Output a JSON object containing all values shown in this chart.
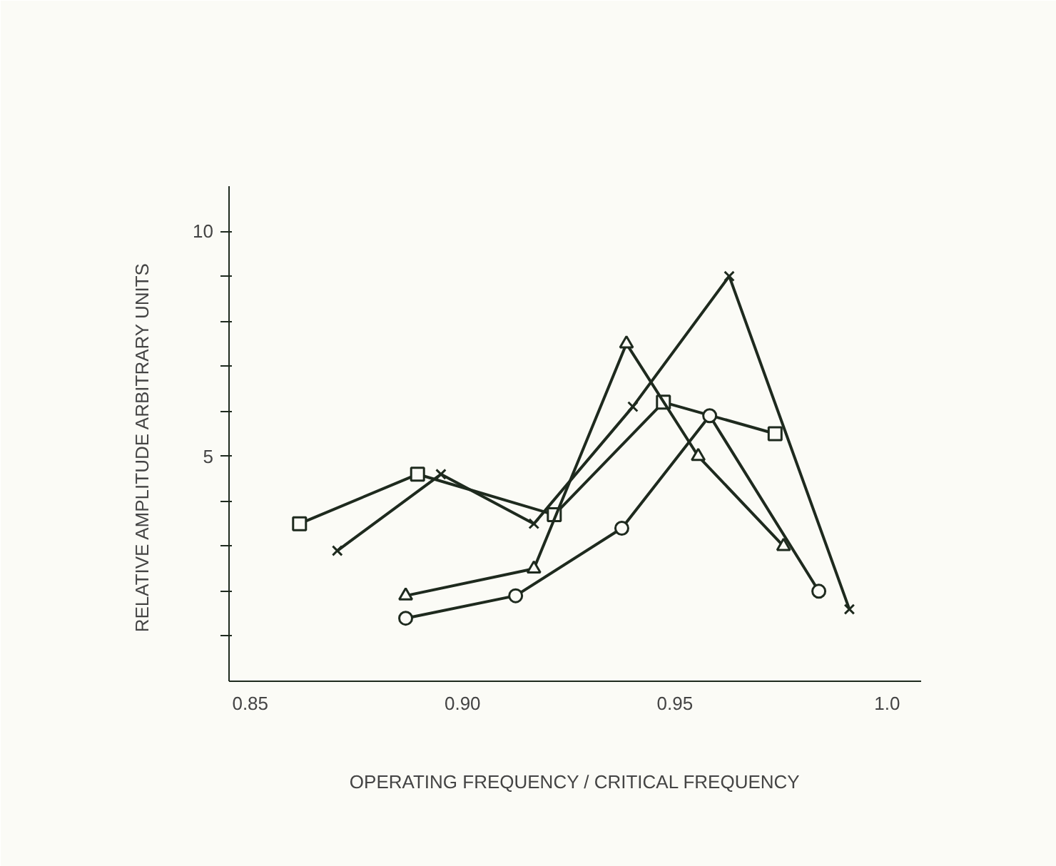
{
  "chart_data": {
    "type": "line",
    "xlabel": "OPERATING FREQUENCY / CRITICAL FREQUENCY",
    "ylabel": "RELATIVE AMPLITUDE      ARBITRARY UNITS",
    "xlim": [
      0.845,
      1.008
    ],
    "ylim": [
      0,
      11
    ],
    "xticks": [
      0.85,
      {
        "value": 0.9,
        "label": "0.90"
      },
      0.95,
      {
        "value": 1.0,
        "label": "1.0"
      }
    ],
    "yticks": [
      {
        "value": 1,
        "label": null
      },
      {
        "value": 2,
        "label": null
      },
      {
        "value": 3,
        "label": null
      },
      {
        "value": 4,
        "label": null
      },
      5,
      {
        "value": 6,
        "label": null
      },
      {
        "value": 7,
        "label": null
      },
      {
        "value": 8,
        "label": null
      },
      {
        "value": 9,
        "label": null
      },
      10
    ],
    "grid": false,
    "line_style": "solid",
    "series": [
      {
        "color": "#1e2a1e",
        "marker": "square",
        "x": [
          0.8616,
          0.8894,
          0.9216,
          0.9473,
          0.9736
        ],
        "values": [
          3.5,
          4.6,
          3.7,
          6.2,
          5.5
        ]
      },
      {
        "color": "#1e2a1e",
        "marker": "cross",
        "x": [
          0.8705,
          0.8949,
          0.9168,
          0.9401,
          0.9628,
          0.9911
        ],
        "values": [
          2.9,
          4.6,
          3.5,
          6.1,
          9.0,
          1.6
        ]
      },
      {
        "color": "#1e2a1e",
        "marker": "triangle",
        "x": [
          0.8866,
          0.9168,
          0.9386,
          0.9555,
          0.9756
        ],
        "values": [
          1.9,
          2.5,
          7.5,
          5.0,
          3.0
        ]
      },
      {
        "color": "#1e2a1e",
        "marker": "circle",
        "x": [
          0.8866,
          0.9125,
          0.9375,
          0.9582,
          0.9839
        ],
        "values": [
          1.4,
          1.9,
          3.4,
          5.9,
          2.0
        ]
      }
    ]
  }
}
